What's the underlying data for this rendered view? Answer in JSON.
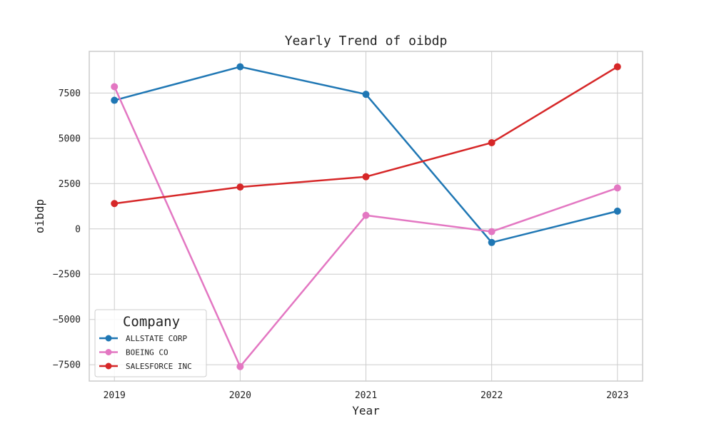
{
  "chart_data": {
    "type": "line",
    "title": "Yearly Trend of oibdp",
    "xlabel": "Year",
    "ylabel": "oibdp",
    "x": [
      2019,
      2020,
      2021,
      2022,
      2023
    ],
    "x_tick_labels": [
      "2019",
      "2020",
      "2021",
      "2022",
      "2023"
    ],
    "xlim": [
      2018.8,
      2023.2
    ],
    "ylim": [
      -8400,
      9800
    ],
    "y_ticks": [
      -7500,
      -5000,
      -2500,
      0,
      2500,
      5000,
      7500
    ],
    "y_tick_labels": [
      "−7500",
      "−5000",
      "−2500",
      "0",
      "2500",
      "5000",
      "7500"
    ],
    "grid": true,
    "legend": {
      "title": "Company",
      "position": "lower-left"
    },
    "series": [
      {
        "name": "ALLSTATE CORP",
        "color": "#1f77b4",
        "values": [
          7100,
          8950,
          7430,
          -750,
          980
        ]
      },
      {
        "name": "BOEING CO",
        "color": "#e377c2",
        "values": [
          7850,
          -7600,
          750,
          -150,
          2260
        ]
      },
      {
        "name": "SALESFORCE INC",
        "color": "#d62728",
        "values": [
          1400,
          2310,
          2880,
          4760,
          8950
        ]
      }
    ]
  }
}
